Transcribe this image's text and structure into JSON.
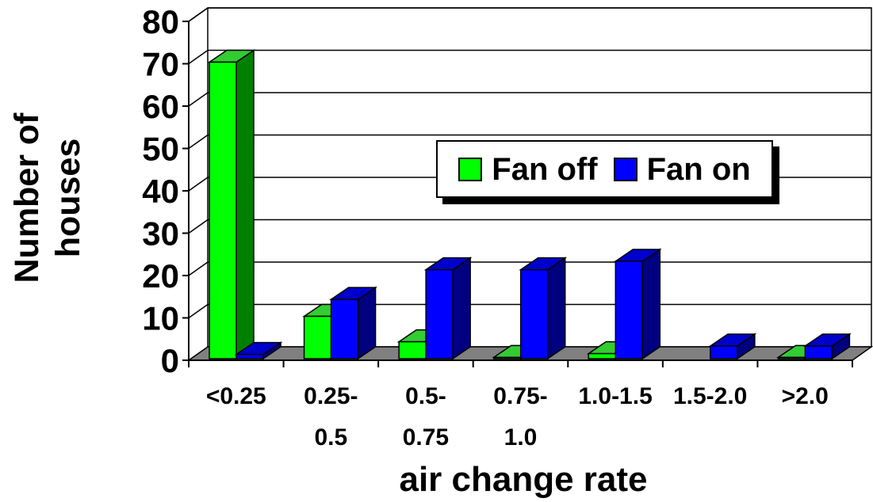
{
  "chart_data": {
    "type": "bar",
    "categories": [
      "<0.25",
      "0.25-0.5",
      "0.5-0.75",
      "0.75-1.0",
      "1.0-1.5",
      "1.5-2.0",
      ">2.0"
    ],
    "category_label_lines": [
      [
        "<0.25"
      ],
      [
        "0.25-",
        "0.5"
      ],
      [
        "0.5-",
        "0.75"
      ],
      [
        "0.75-",
        "1.0"
      ],
      [
        "1.0-1.5"
      ],
      [
        "1.5-2.0"
      ],
      [
        ">2.0"
      ]
    ],
    "series": [
      {
        "name": "Fan off",
        "values": [
          70,
          10,
          4,
          0.3,
          1.2,
          0,
          0.3
        ]
      },
      {
        "name": "Fan on",
        "values": [
          1,
          14,
          21,
          21,
          23,
          3,
          3
        ]
      }
    ],
    "xlabel": "air change rate",
    "ylabel": "Number of\nhouses",
    "ylim": [
      0,
      80
    ],
    "yticks": [
      0,
      10,
      20,
      30,
      40,
      50,
      60,
      70,
      80
    ],
    "grid": true,
    "three_d": true,
    "legend_position": "center-right",
    "colors": {
      "fan_off": "#00ff00",
      "fan_off_dark": "#008000",
      "fan_off_top": "#33cc33",
      "fan_on": "#0000ff",
      "fan_on_dark": "#000080",
      "fan_on_top": "#0000cc",
      "floor": "#808080"
    }
  }
}
